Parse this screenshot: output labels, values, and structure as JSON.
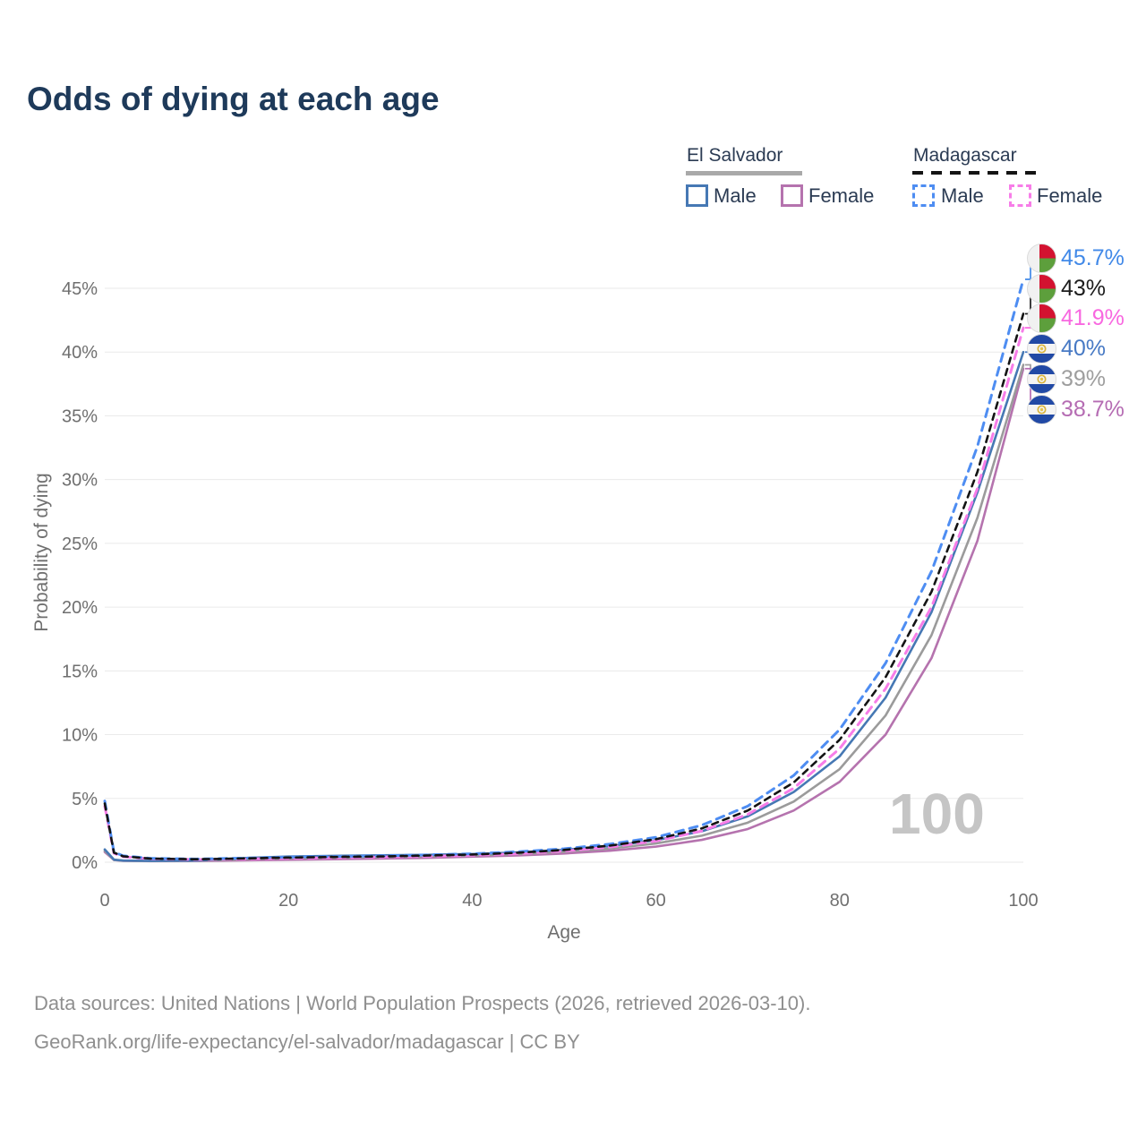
{
  "title": "Odds of dying at each age",
  "watermark": "100",
  "legend": {
    "groups": [
      {
        "name": "El Salvador",
        "line_style": "solid",
        "line_color": "#a9a9a9",
        "items": [
          {
            "label": "Male",
            "color": "#4678b4"
          },
          {
            "label": "Female",
            "color": "#b573ae"
          }
        ]
      },
      {
        "name": "Madagascar",
        "line_style": "dashed",
        "line_color": "#141414",
        "items": [
          {
            "label": "Male",
            "color": "#4e8df2"
          },
          {
            "label": "Female",
            "color": "#f77de8"
          }
        ]
      }
    ]
  },
  "footer": {
    "line1": "Data sources: United Nations | World Population Prospects (2026, retrieved 2026-03-10).",
    "line2": "GeoRank.org/life-expectancy/el-salvador/madagascar | CC BY"
  },
  "chart_data": {
    "type": "line",
    "title": "Odds of dying at each age",
    "xlabel": "Age",
    "ylabel": "Probability of dying",
    "xlim": [
      0,
      100
    ],
    "ylim_percent": [
      0,
      48
    ],
    "grid": "horizontal",
    "xticks": [
      0,
      20,
      40,
      60,
      80,
      100
    ],
    "yticks": [
      {
        "value": 0,
        "label": "0%"
      },
      {
        "value": 5,
        "label": "5%"
      },
      {
        "value": 10,
        "label": "10%"
      },
      {
        "value": 15,
        "label": "15%"
      },
      {
        "value": 20,
        "label": "20%"
      },
      {
        "value": 25,
        "label": "25%"
      },
      {
        "value": 30,
        "label": "30%"
      },
      {
        "value": 35,
        "label": "35%"
      },
      {
        "value": 40,
        "label": "40%"
      },
      {
        "value": 45,
        "label": "45%"
      }
    ],
    "x": [
      0,
      1,
      2,
      5,
      10,
      15,
      20,
      25,
      30,
      35,
      40,
      45,
      50,
      55,
      60,
      65,
      70,
      75,
      80,
      85,
      90,
      95,
      100
    ],
    "series": [
      {
        "id": "sv_female",
        "name": "El Salvador Female",
        "color": "#b573ae",
        "dash": "",
        "width": 2.6,
        "values": [
          0.8,
          0.17,
          0.11,
          0.08,
          0.09,
          0.14,
          0.19,
          0.23,
          0.28,
          0.34,
          0.43,
          0.53,
          0.68,
          0.9,
          1.22,
          1.75,
          2.6,
          4.05,
          6.3,
          10.0,
          16.0,
          25.2,
          38.7
        ]
      },
      {
        "id": "sv_total",
        "name": "El Salvador Total",
        "color": "#9b9b9b",
        "dash": "",
        "width": 2.6,
        "values": [
          0.9,
          0.18,
          0.12,
          0.09,
          0.11,
          0.23,
          0.31,
          0.36,
          0.41,
          0.46,
          0.53,
          0.64,
          0.82,
          1.07,
          1.47,
          2.08,
          3.1,
          4.75,
          7.3,
          11.5,
          17.8,
          27.0,
          39.0
        ]
      },
      {
        "id": "sv_male",
        "name": "El Salvador Male",
        "color": "#4678b4",
        "dash": "",
        "width": 2.6,
        "values": [
          1.0,
          0.2,
          0.13,
          0.1,
          0.13,
          0.32,
          0.44,
          0.5,
          0.54,
          0.58,
          0.64,
          0.77,
          0.97,
          1.27,
          1.72,
          2.42,
          3.6,
          5.5,
          8.3,
          12.9,
          19.6,
          29.0,
          40.0
        ]
      },
      {
        "id": "mg_female",
        "name": "Madagascar Female",
        "color": "#f77de8",
        "dash": "9 7",
        "width": 3,
        "values": [
          4.4,
          0.7,
          0.43,
          0.26,
          0.21,
          0.25,
          0.31,
          0.35,
          0.4,
          0.46,
          0.54,
          0.67,
          0.87,
          1.18,
          1.66,
          2.45,
          3.75,
          5.8,
          8.9,
          13.6,
          20.0,
          29.3,
          41.9
        ]
      },
      {
        "id": "mg_male",
        "name": "Madagascar Male",
        "color": "#4e8df2",
        "dash": "9 7",
        "width": 3,
        "values": [
          4.8,
          0.8,
          0.5,
          0.3,
          0.25,
          0.32,
          0.4,
          0.45,
          0.5,
          0.57,
          0.66,
          0.82,
          1.05,
          1.42,
          1.95,
          2.9,
          4.4,
          6.8,
          10.4,
          15.6,
          22.8,
          32.6,
          45.7
        ]
      },
      {
        "id": "mg_total",
        "name": "Madagascar Total",
        "color": "#141414",
        "dash": "7 6",
        "width": 2.6,
        "values": [
          4.6,
          0.75,
          0.46,
          0.28,
          0.23,
          0.29,
          0.36,
          0.41,
          0.45,
          0.52,
          0.6,
          0.74,
          0.96,
          1.3,
          1.8,
          2.65,
          4.05,
          6.25,
          9.6,
          14.5,
          21.2,
          30.6,
          43.0
        ]
      }
    ],
    "end_labels": [
      {
        "text": "45.7%",
        "value": 45.7,
        "color": "#4189e8",
        "flag": "madagascar",
        "series": "mg_male"
      },
      {
        "text": "43%",
        "value": 43.0,
        "color": "#1c1c1c",
        "flag": "madagascar",
        "series": "mg_total"
      },
      {
        "text": "41.9%",
        "value": 41.9,
        "color": "#f868e0",
        "flag": "madagascar",
        "series": "mg_female"
      },
      {
        "text": "40%",
        "value": 40.0,
        "color": "#4779c4",
        "flag": "el-salvador",
        "series": "sv_male"
      },
      {
        "text": "39%",
        "value": 39.0,
        "color": "#9e9e9e",
        "flag": "el-salvador",
        "series": "sv_total"
      },
      {
        "text": "38.7%",
        "value": 38.7,
        "color": "#b56cb3",
        "flag": "el-salvador",
        "series": "sv_female"
      }
    ]
  }
}
